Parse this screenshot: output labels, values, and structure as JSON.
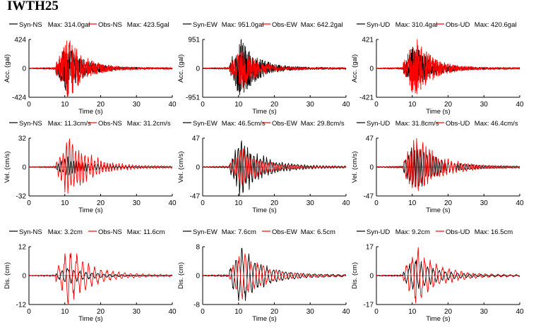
{
  "title": "IWTH25",
  "colors": {
    "syn": "#000000",
    "obs": "#ff0000"
  },
  "chart_data": [
    {
      "type": "line",
      "component": "NS",
      "quantity": "acc",
      "ylabel": "Acc. (gal)",
      "xlabel": "Time (s)",
      "xlim": [
        0,
        40
      ],
      "ylim": [
        -424,
        424
      ],
      "xticks": [
        "0",
        "10",
        "20",
        "30",
        "40"
      ],
      "yticks": [
        "424",
        "0",
        "-424"
      ],
      "series": [
        {
          "name": "Syn-NS",
          "max_label": "Max: 314.0gal",
          "peak": 314.0
        },
        {
          "name": "Obs-NS",
          "max_label": "Max: 423.5gal",
          "peak": 423.5
        }
      ]
    },
    {
      "type": "line",
      "component": "EW",
      "quantity": "acc",
      "ylabel": "Acc. (gal)",
      "xlabel": "Time (s)",
      "xlim": [
        0,
        40
      ],
      "ylim": [
        -951,
        951
      ],
      "xticks": [
        "0",
        "10",
        "20",
        "30",
        "40"
      ],
      "yticks": [
        "951",
        "0",
        "-951"
      ],
      "series": [
        {
          "name": "Syn-EW",
          "max_label": "Max: 951.0gal",
          "peak": 951.0
        },
        {
          "name": "Obs-EW",
          "max_label": "Max: 642.2gal",
          "peak": 642.2
        }
      ]
    },
    {
      "type": "line",
      "component": "UD",
      "quantity": "acc",
      "ylabel": "Acc. (gal)",
      "xlabel": "Time (s)",
      "xlim": [
        0,
        40
      ],
      "ylim": [
        -421,
        421
      ],
      "xticks": [
        "0",
        "10",
        "20",
        "30",
        "40"
      ],
      "yticks": [
        "421",
        "0",
        "-421"
      ],
      "series": [
        {
          "name": "Syn-UD",
          "max_label": "Max: 310.4gal",
          "peak": 310.4
        },
        {
          "name": "Obs-UD",
          "max_label": "Max: 420.6gal",
          "peak": 420.6
        }
      ]
    },
    {
      "type": "line",
      "component": "NS",
      "quantity": "vel",
      "ylabel": "Vel. (cm/s)",
      "xlabel": "Time (s)",
      "xlim": [
        0,
        40
      ],
      "ylim": [
        -32,
        32
      ],
      "xticks": [
        "0",
        "10",
        "20",
        "30",
        "40"
      ],
      "yticks": [
        "32",
        "0",
        "-32"
      ],
      "series": [
        {
          "name": "Syn-NS",
          "max_label": "Max: 11.3cm/s",
          "peak": 11.3
        },
        {
          "name": "Obs-NS",
          "max_label": "Max: 31.2cm/s",
          "peak": 31.2
        }
      ]
    },
    {
      "type": "line",
      "component": "EW",
      "quantity": "vel",
      "ylabel": "Vel. (cm/s)",
      "xlabel": "Time (s)",
      "xlim": [
        0,
        40
      ],
      "ylim": [
        -47,
        47
      ],
      "xticks": [
        "0",
        "10",
        "20",
        "30",
        "40"
      ],
      "yticks": [
        "47",
        "0",
        "-47"
      ],
      "series": [
        {
          "name": "Syn-EW",
          "max_label": "Max: 46.5cm/s",
          "peak": 46.5
        },
        {
          "name": "Obs-EW",
          "max_label": "Max: 29.8cm/s",
          "peak": 29.8
        }
      ]
    },
    {
      "type": "line",
      "component": "UD",
      "quantity": "vel",
      "ylabel": "Vel. (cm/s)",
      "xlabel": "Time (s)",
      "xlim": [
        0,
        40
      ],
      "ylim": [
        -47,
        47
      ],
      "xticks": [
        "0",
        "10",
        "20",
        "30",
        "40"
      ],
      "yticks": [
        "47",
        "0",
        "-47"
      ],
      "series": [
        {
          "name": "Syn-UD",
          "max_label": "Max: 31.8cm/s",
          "peak": 31.8
        },
        {
          "name": "Obs-UD",
          "max_label": "Max: 46.4cm/s",
          "peak": 46.4
        }
      ]
    },
    {
      "type": "line",
      "component": "NS",
      "quantity": "dis",
      "ylabel": "Dis. (cm)",
      "xlabel": "Time (s)",
      "xlim": [
        0,
        40
      ],
      "ylim": [
        -12,
        12
      ],
      "xticks": [
        "0",
        "10",
        "20",
        "30",
        "40"
      ],
      "yticks": [
        "12",
        "0",
        "-12"
      ],
      "series": [
        {
          "name": "Syn-NS",
          "max_label": "Max: 3.2cm",
          "peak": 3.2
        },
        {
          "name": "Obs-NS",
          "max_label": "Max: 11.6cm",
          "peak": 11.6
        }
      ]
    },
    {
      "type": "line",
      "component": "EW",
      "quantity": "dis",
      "ylabel": "Dis. (cm)",
      "xlabel": "Time (s)",
      "xlim": [
        0,
        40
      ],
      "ylim": [
        -8,
        8
      ],
      "xticks": [
        "0",
        "10",
        "20",
        "30",
        "40"
      ],
      "yticks": [
        "8",
        "0",
        "-8"
      ],
      "series": [
        {
          "name": "Syn-EW",
          "max_label": "Max: 7.6cm",
          "peak": 7.6
        },
        {
          "name": "Obs-EW",
          "max_label": "Max: 6.5cm",
          "peak": 6.5
        }
      ]
    },
    {
      "type": "line",
      "component": "UD",
      "quantity": "dis",
      "ylabel": "Dis. (cm)",
      "xlabel": "Time (s)",
      "xlim": [
        0,
        40
      ],
      "ylim": [
        -17,
        17
      ],
      "xticks": [
        "0",
        "10",
        "20",
        "30",
        "40"
      ],
      "yticks": [
        "17",
        "0",
        "-17"
      ],
      "series": [
        {
          "name": "Syn-UD",
          "max_label": "Max: 9.2cm",
          "peak": 9.2
        },
        {
          "name": "Obs-UD",
          "max_label": "Max: 16.5cm",
          "peak": 16.5
        }
      ]
    }
  ]
}
